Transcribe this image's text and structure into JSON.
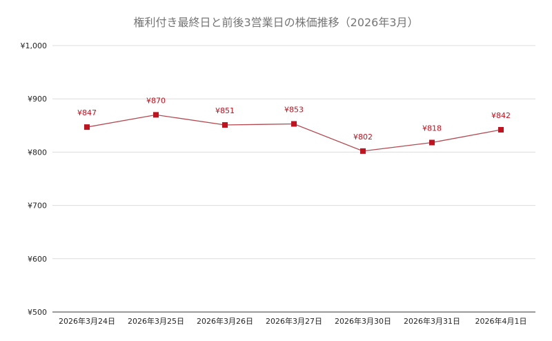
{
  "chart_data": {
    "type": "line",
    "title": "権利付き最終日と前後3営業日の株価推移（2026年3月）",
    "xlabel": "",
    "ylabel": "",
    "categories": [
      "2026年3月24日",
      "2026年3月25日",
      "2026年3月26日",
      "2026年3月27日",
      "2026年3月30日",
      "2026年3月31日",
      "2026年4月1日"
    ],
    "series": [
      {
        "values": [
          847,
          870,
          851,
          853,
          802,
          818,
          842
        ],
        "labels": [
          "¥847",
          "¥870",
          "¥851",
          "¥853",
          "¥802",
          "¥818",
          "¥842"
        ]
      }
    ],
    "ylim": [
      500,
      1000
    ],
    "yticks": [
      500,
      600,
      700,
      800,
      900,
      1000
    ],
    "ytick_labels": [
      "¥500",
      "¥600",
      "¥700",
      "¥800",
      "¥900",
      "¥1,000"
    ],
    "grid": true,
    "legend": "none",
    "colors": {
      "series": "#c1121f",
      "line": "#b5474f"
    }
  }
}
